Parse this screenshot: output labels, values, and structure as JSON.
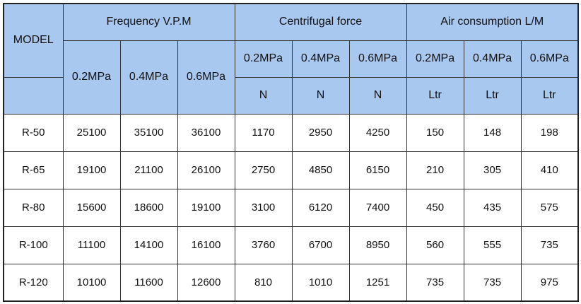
{
  "table": {
    "model_header": "MODEL",
    "groups": [
      "Frequency V.P.M",
      "Centrifugal force",
      "Air consumption L/M"
    ],
    "pressures": [
      "0.2MPa",
      "0.4MPa",
      "0.6MPa",
      "0.2MPa",
      "0.4MPa",
      "0.6MPa",
      "0.2MPa",
      "0.4MPa",
      "0.6MPa"
    ],
    "units": [
      "N",
      "N",
      "N",
      "Ltr",
      "Ltr",
      "Ltr"
    ],
    "rows": [
      [
        "R-50",
        25100,
        35100,
        36100,
        1170,
        2950,
        4250,
        150,
        148,
        198
      ],
      [
        "R-65",
        19100,
        21100,
        26100,
        2750,
        4850,
        6150,
        210,
        305,
        410
      ],
      [
        "R-80",
        15600,
        18600,
        19100,
        3100,
        6120,
        7400,
        450,
        435,
        575
      ],
      [
        "R-100",
        11100,
        14100,
        16100,
        3760,
        6700,
        8950,
        560,
        555,
        735
      ],
      [
        "R-120",
        10100,
        11600,
        12600,
        810,
        1010,
        1251,
        735,
        735,
        975
      ]
    ]
  }
}
